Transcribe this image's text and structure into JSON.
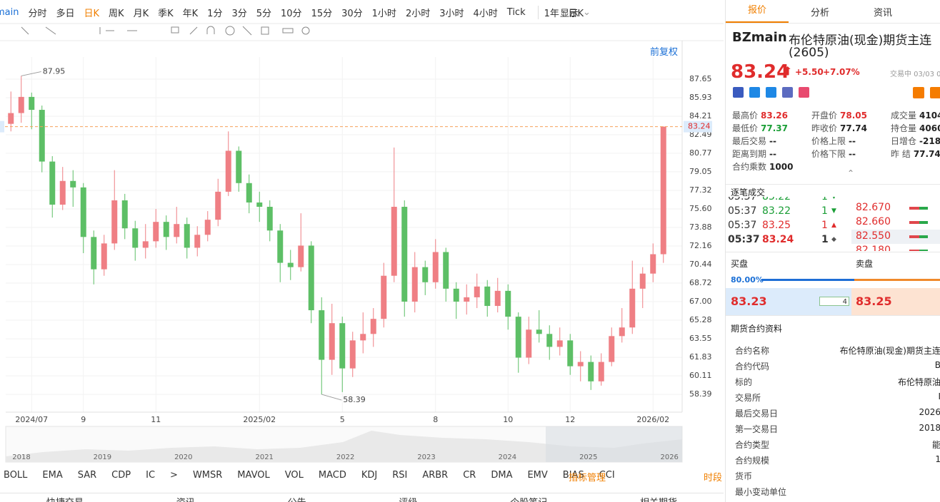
{
  "toolbar": {
    "symbol": "main",
    "periods": [
      "分时",
      "多日",
      "日K",
      "周K",
      "月K",
      "季K",
      "年K",
      "1分",
      "3分",
      "5分",
      "10分",
      "15分",
      "30分",
      "1小时",
      "2小时",
      "3小时",
      "4小时",
      "Tick"
    ],
    "range": "1年 : 日K",
    "display": "显示"
  },
  "tabs": [
    "报价",
    "分析",
    "资讯"
  ],
  "adjust": "前复权",
  "chart_data": {
    "type": "candlestick",
    "up_color": "#ef7f84",
    "down_color": "#5dbf66",
    "grid": true,
    "ylim": [
      56.74,
      89.7
    ],
    "yticks": [
      87.65,
      85.93,
      84.21,
      82.49,
      80.77,
      79.05,
      77.32,
      {
        "value": 75.6,
        "label": "75.60"
      },
      73.88,
      72.16,
      70.44,
      68.72,
      {
        "value": 67,
        "label": "67.00"
      },
      65.28,
      63.55,
      61.83,
      60.11,
      58.39
    ],
    "categories": [
      null,
      null,
      "2024/07",
      null,
      null,
      null,
      null,
      "9",
      null,
      null,
      null,
      null,
      null,
      null,
      "11",
      null,
      null,
      null,
      null,
      null,
      null,
      null,
      null,
      null,
      "2025/02",
      null,
      null,
      null,
      null,
      null,
      null,
      null,
      "5",
      null,
      null,
      null,
      null,
      null,
      null,
      null,
      null,
      "8",
      null,
      null,
      null,
      null,
      null,
      null,
      "10",
      null,
      null,
      null,
      null,
      null,
      "12",
      null,
      null,
      null,
      null,
      null,
      null,
      null,
      "2026/02",
      null
    ],
    "candles": [
      [
        83.5,
        86.5,
        82.8,
        84.5
      ],
      [
        84.5,
        87.95,
        83.6,
        86.0
      ],
      [
        86.0,
        86.4,
        83.0,
        84.8
      ],
      [
        84.8,
        85.2,
        79.0,
        80.0
      ],
      [
        80.0,
        80.5,
        74.8,
        76.0
      ],
      [
        76.0,
        79.5,
        75.5,
        78.2
      ],
      [
        78.2,
        79.2,
        75.8,
        77.6
      ],
      [
        77.6,
        78.0,
        71.5,
        73.0
      ],
      [
        73.0,
        73.6,
        68.6,
        70.0
      ],
      [
        70.0,
        73.2,
        69.4,
        72.4
      ],
      [
        72.4,
        79.2,
        71.8,
        76.4
      ],
      [
        76.4,
        77.0,
        72.8,
        73.8
      ],
      [
        73.8,
        74.5,
        70.8,
        72.0
      ],
      [
        72.0,
        74.2,
        71.0,
        72.6
      ],
      [
        72.6,
        75.6,
        72.0,
        74.4
      ],
      [
        74.4,
        75.0,
        71.8,
        73.0
      ],
      [
        73.0,
        75.8,
        72.4,
        74.2
      ],
      [
        74.2,
        74.8,
        71.0,
        72.0
      ],
      [
        72.0,
        74.0,
        71.2,
        73.2
      ],
      [
        73.2,
        75.4,
        72.6,
        74.6
      ],
      [
        74.6,
        78.4,
        74.0,
        77.2
      ],
      [
        77.2,
        82.8,
        76.8,
        81.0
      ],
      [
        81.0,
        81.4,
        77.2,
        78.0
      ],
      [
        78.0,
        78.8,
        75.2,
        76.2
      ],
      [
        76.2,
        77.2,
        74.4,
        75.8
      ],
      [
        75.8,
        76.4,
        72.6,
        73.6
      ],
      [
        73.6,
        74.2,
        68.8,
        70.6
      ],
      [
        70.6,
        71.8,
        69.0,
        70.2
      ],
      [
        70.2,
        75.2,
        69.8,
        72.2
      ],
      [
        72.2,
        72.6,
        65.0,
        66.2
      ],
      [
        66.2,
        67.4,
        58.39,
        61.6
      ],
      [
        61.6,
        66.8,
        60.2,
        65.0
      ],
      [
        65.0,
        65.6,
        58.6,
        60.8
      ],
      [
        60.8,
        64.2,
        60.0,
        63.4
      ],
      [
        63.4,
        66.0,
        62.2,
        64.0
      ],
      [
        64.0,
        66.4,
        62.8,
        65.4
      ],
      [
        65.4,
        70.6,
        64.6,
        69.4
      ],
      [
        69.4,
        81.3,
        68.8,
        75.8
      ],
      [
        75.8,
        76.4,
        65.6,
        67.0
      ],
      [
        67.0,
        71.6,
        66.0,
        70.2
      ],
      [
        70.2,
        70.8,
        67.6,
        68.8
      ],
      [
        68.8,
        72.8,
        68.2,
        71.6
      ],
      [
        71.6,
        72.0,
        67.0,
        68.2
      ],
      [
        68.2,
        68.8,
        65.4,
        67.0
      ],
      [
        67.0,
        68.6,
        65.8,
        67.4
      ],
      [
        67.4,
        69.6,
        66.4,
        68.4
      ],
      [
        68.4,
        69.0,
        65.6,
        66.6
      ],
      [
        66.6,
        69.2,
        66.0,
        68.0
      ],
      [
        68.0,
        68.6,
        64.4,
        65.6
      ],
      [
        65.6,
        66.0,
        60.4,
        61.8
      ],
      [
        61.8,
        65.6,
        61.2,
        64.4
      ],
      [
        64.4,
        66.2,
        63.2,
        64.0
      ],
      [
        64.0,
        64.8,
        61.6,
        62.8
      ],
      [
        62.8,
        64.6,
        62.0,
        63.4
      ],
      [
        63.4,
        64.0,
        60.2,
        61.0
      ],
      [
        61.0,
        62.4,
        59.6,
        61.4
      ],
      [
        61.4,
        62.0,
        58.8,
        59.6
      ],
      [
        59.6,
        62.2,
        59.2,
        61.4
      ],
      [
        61.4,
        64.6,
        61.0,
        63.8
      ],
      [
        63.8,
        66.4,
        63.2,
        64.6
      ],
      [
        64.6,
        70.8,
        64.0,
        68.2
      ],
      [
        68.2,
        70.2,
        66.4,
        69.6
      ],
      [
        69.6,
        72.4,
        68.8,
        71.4
      ],
      [
        71.4,
        83.26,
        70.6,
        83.24
      ]
    ],
    "annotations": [
      {
        "value": 87.95,
        "index": 1
      },
      {
        "value": 58.39,
        "index": 30
      }
    ],
    "last_price": 83.24
  },
  "navigator": {
    "years": [
      "2018",
      "2019",
      "2020",
      "2021",
      "2022",
      "2023",
      "2024",
      "2025",
      "2026"
    ]
  },
  "indicators": [
    "BOLL",
    "EMA",
    "SAR",
    "CDP",
    "IC",
    ">",
    "WMSR",
    "MAVOL",
    "VOL",
    "MACD",
    "KDJ",
    "RSI",
    "ARBR",
    "CR",
    "DMA",
    "EMV",
    "BIAS",
    "CCI"
  ],
  "indicator_manage": "指标管理",
  "session": "时段",
  "bottom_tabs": [
    "快捷交易",
    "资讯",
    "公告",
    "评级",
    "个股笔记",
    "相关期货"
  ],
  "quote": {
    "code": "BZmain",
    "name": "布伦特原油(现金)期货主连",
    "contract": "(2605)",
    "price": "83.24",
    "change": "+5.50",
    "change_pct": "+7.07%",
    "status": "交易中 03/03 0",
    "stats": [
      [
        {
          "label": "最高价",
          "value": "83.26",
          "tone": "up"
        },
        {
          "label": "开盘价",
          "value": "78.05",
          "tone": "up"
        },
        {
          "label": "成交量",
          "value": "4104"
        }
      ],
      [
        {
          "label": "最低价",
          "value": "77.37",
          "tone": "down"
        },
        {
          "label": "昨收价",
          "value": "77.74"
        },
        {
          "label": "持仓量",
          "value": "4060"
        }
      ],
      [
        {
          "label": "最后交易",
          "value": "--"
        },
        {
          "label": "价格上限",
          "value": "--"
        },
        {
          "label": "日增仓",
          "value": "-218"
        }
      ],
      [
        {
          "label": "距离到期",
          "value": "--"
        },
        {
          "label": "价格下限",
          "value": "--"
        },
        {
          "label": "昨 结",
          "value": "77.74"
        }
      ],
      [
        {
          "label": "合约乘数",
          "value": "1000"
        }
      ]
    ],
    "ticks_title": "逐笔成交",
    "trades": [
      {
        "time": "05:37",
        "price": "83.22",
        "volume": "1",
        "dir": "down"
      },
      {
        "time": "05:37",
        "price": "83.22",
        "volume": "1",
        "dir": "down"
      },
      {
        "time": "05:37",
        "price": "83.25",
        "volume": "1",
        "dir": "up"
      },
      {
        "time": "05:37",
        "price": "83.24",
        "volume": "1",
        "dir": "flat"
      }
    ],
    "depth": [
      "82.670",
      "82.660",
      "82.550",
      "82.180"
    ],
    "buy_label": "买盘",
    "sell_label": "卖盘",
    "buy_ratio": "80.00%",
    "bid": "83.23",
    "bid_volume": "4",
    "ask": "83.25",
    "info_title": "期货合约资料",
    "info": [
      {
        "label": "合约名称",
        "value": "布伦特原油(现金)期货主连"
      },
      {
        "label": "合约代码",
        "value": "B"
      },
      {
        "label": "标的",
        "value": "布伦特原油"
      },
      {
        "label": "交易所",
        "value": "I"
      },
      {
        "label": "最后交易日",
        "value": "2026"
      },
      {
        "label": "第一交易日",
        "value": "2018"
      },
      {
        "label": "合约类型",
        "value": "能"
      },
      {
        "label": "合约规模",
        "value": "1"
      },
      {
        "label": "货币"
      },
      {
        "label": "最小变动单位"
      }
    ]
  }
}
